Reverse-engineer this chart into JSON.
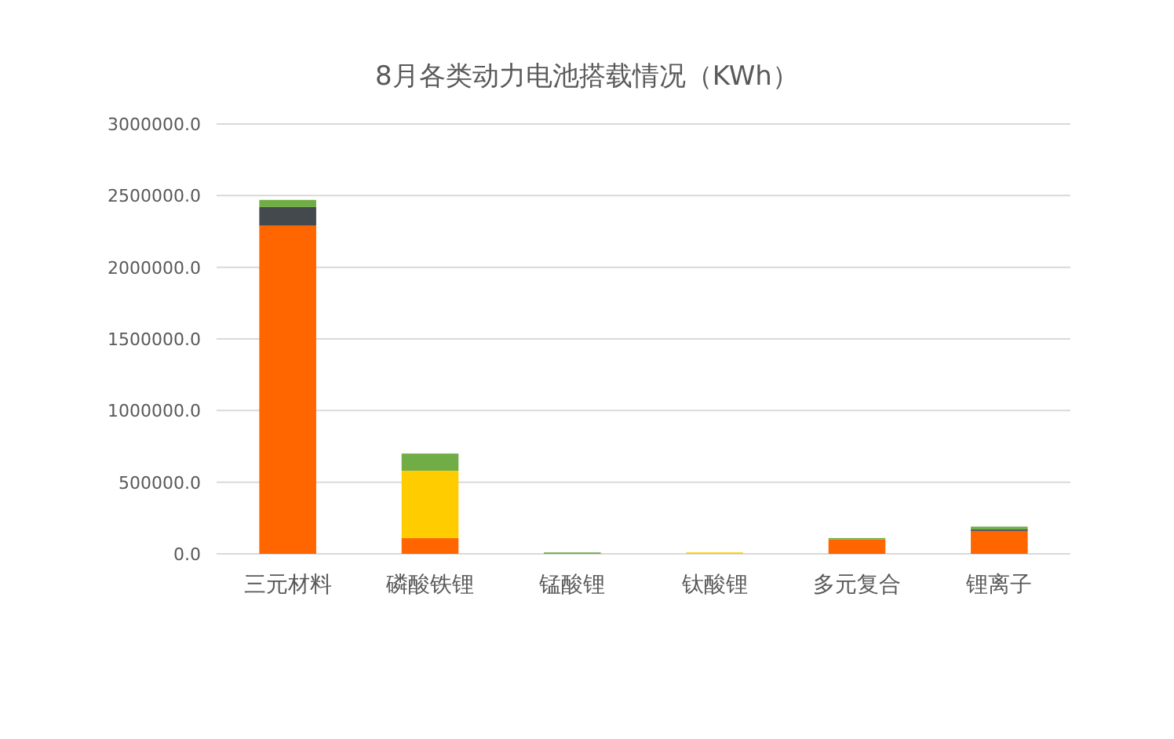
{
  "chart_data": {
    "type": "bar",
    "title": "8月各类动力电池搭载情况（KWh）",
    "categories": [
      "三元材料",
      "磷酸铁锂",
      "锰酸锂",
      "钛酸锂",
      "多元复合",
      "锂离子"
    ],
    "stacked": true,
    "grid": "y",
    "series": [
      {
        "color": "#ff6600",
        "values": [
          2290000,
          110000,
          null,
          null,
          100000,
          160000
        ]
      },
      {
        "color": "#44494d",
        "values": [
          130000,
          null,
          null,
          null,
          null,
          10000
        ]
      },
      {
        "color": "#ffcc00",
        "values": [
          null,
          470000,
          null,
          10000,
          null,
          null
        ]
      },
      {
        "color": "#70ad47",
        "values": [
          50000,
          120000,
          10000,
          null,
          10000,
          20000
        ]
      }
    ],
    "ylim": [
      0,
      3000000
    ],
    "yticks": [
      {
        "value": 0,
        "label": "0.0"
      },
      {
        "value": 500000,
        "label": "500000.0"
      },
      {
        "value": 1000000,
        "label": "1000000.0"
      },
      {
        "value": 1500000,
        "label": "1500000.0"
      },
      {
        "value": 2000000,
        "label": "2000000.0"
      },
      {
        "value": 2500000,
        "label": "2500000.0"
      },
      {
        "value": 3000000,
        "label": "3000000.0"
      }
    ]
  }
}
